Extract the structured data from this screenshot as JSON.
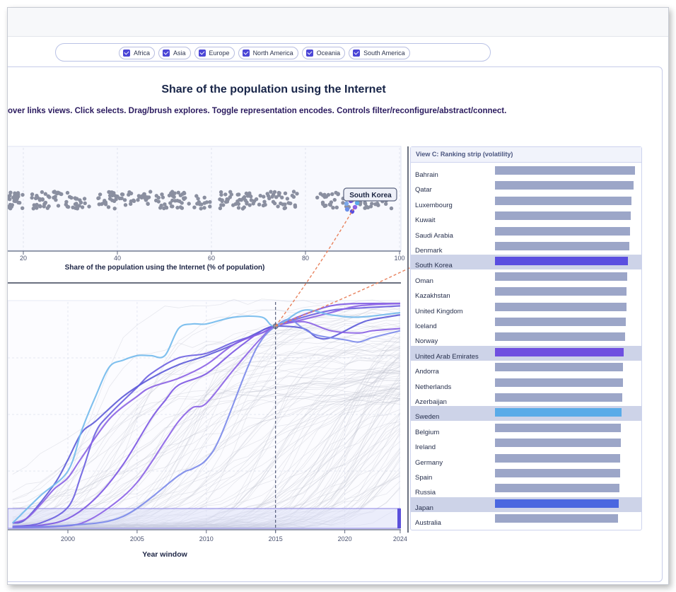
{
  "filters": [
    {
      "label": "Africa",
      "checked": true
    },
    {
      "label": "Asia",
      "checked": true
    },
    {
      "label": "Europe",
      "checked": true
    },
    {
      "label": "North America",
      "checked": true
    },
    {
      "label": "Oceania",
      "checked": true
    },
    {
      "label": "South America",
      "checked": true
    }
  ],
  "title": "Share of the population using the Internet",
  "instructions": "over links views. Click selects. Drag/brush explores. Toggle representation encodes. Controls filter/reconfigure/abstract/connect.",
  "view_c_title": "View C: Ranking strip (volatility)",
  "tooltip": "South Korea",
  "colors": {
    "accent": "#4b46d6",
    "dots": "#8a8fa0",
    "bar_default": "#9ca6c8",
    "row_highlight": "#cdd3e8",
    "link_dash": "#e8825d"
  },
  "chart_data": [
    {
      "type": "scatter",
      "subtype": "beeswarm",
      "xlabel": "Share of the population using the Internet (% of population)",
      "xlim": [
        15,
        100
      ],
      "xticks": [
        20,
        40,
        60,
        80,
        100
      ],
      "highlight": {
        "label": "South Korea",
        "x": 89.9
      }
    },
    {
      "type": "line",
      "xlabel": "Year window",
      "xlim": [
        1996,
        2024
      ],
      "xticks": [
        2000,
        2005,
        2010,
        2015,
        2020,
        2024
      ],
      "ylim": [
        0,
        100
      ],
      "marker_year": 2015,
      "highlighted_series": [
        {
          "color": "#6b5fe0",
          "values": [
            [
              1996,
              0.5
            ],
            [
              1998,
              2
            ],
            [
              2000,
              9
            ],
            [
              2001,
              24
            ],
            [
              2002,
              42
            ],
            [
              2003,
              50
            ],
            [
              2005,
              62
            ],
            [
              2006,
              68
            ],
            [
              2008,
              75
            ],
            [
              2010,
              77
            ],
            [
              2012,
              82
            ],
            [
              2014,
              86
            ],
            [
              2015,
              89
            ],
            [
              2017,
              93
            ],
            [
              2019,
              96
            ],
            [
              2021,
              97
            ],
            [
              2024,
              98
            ]
          ]
        },
        {
          "color": "#7b55e2",
          "values": [
            [
              1996,
              0.2
            ],
            [
              1998,
              1
            ],
            [
              2000,
              4
            ],
            [
              2002,
              13
            ],
            [
              2004,
              28
            ],
            [
              2006,
              48
            ],
            [
              2007,
              56
            ],
            [
              2008,
              63
            ],
            [
              2010,
              68
            ],
            [
              2012,
              78
            ],
            [
              2014,
              87
            ],
            [
              2015,
              89
            ],
            [
              2017,
              94
            ],
            [
              2019,
              98
            ],
            [
              2021,
              99
            ],
            [
              2024,
              99
            ]
          ]
        },
        {
          "color": "#8b62e6",
          "values": [
            [
              1996,
              0.1
            ],
            [
              1999,
              0.5
            ],
            [
              2001,
              2
            ],
            [
              2003,
              9
            ],
            [
              2005,
              20
            ],
            [
              2007,
              38
            ],
            [
              2008,
              47
            ],
            [
              2009,
              53
            ],
            [
              2010,
              55
            ],
            [
              2012,
              70
            ],
            [
              2014,
              84
            ],
            [
              2015,
              89
            ],
            [
              2017,
              92
            ],
            [
              2019,
              95
            ],
            [
              2021,
              98
            ],
            [
              2024,
              99
            ]
          ]
        },
        {
          "color": "#5c5ad8",
          "values": [
            [
              1996,
              2
            ],
            [
              1997,
              4
            ],
            [
              1999,
              19
            ],
            [
              2000,
              30
            ],
            [
              2001,
              42
            ],
            [
              2002,
              47
            ],
            [
              2004,
              58
            ],
            [
              2006,
              66
            ],
            [
              2008,
              72
            ],
            [
              2010,
              76
            ],
            [
              2012,
              81
            ],
            [
              2014,
              87
            ],
            [
              2015,
              89
            ],
            [
              2017,
              88
            ],
            [
              2018,
              84
            ],
            [
              2019,
              84
            ],
            [
              2021,
              90
            ],
            [
              2022,
              92
            ],
            [
              2024,
              94
            ]
          ]
        },
        {
          "color": "#8a60e4",
          "values": [
            [
              1996,
              2
            ],
            [
              1997,
              4
            ],
            [
              1998,
              10
            ],
            [
              1999,
              17
            ],
            [
              2000,
              22
            ],
            [
              2001,
              31
            ],
            [
              2003,
              48
            ],
            [
              2005,
              58
            ],
            [
              2006,
              62
            ],
            [
              2008,
              66
            ],
            [
              2010,
              72
            ],
            [
              2012,
              81
            ],
            [
              2014,
              86
            ],
            [
              2015,
              89
            ],
            [
              2017,
              91
            ],
            [
              2019,
              87
            ],
            [
              2021,
              86
            ],
            [
              2022,
              87
            ],
            [
              2024,
              88
            ]
          ]
        },
        {
          "color": "#7a88ea",
          "values": [
            [
              1996,
              0.2
            ],
            [
              2000,
              1
            ],
            [
              2004,
              5
            ],
            [
              2008,
              23
            ],
            [
              2009,
              26
            ],
            [
              2010,
              30
            ],
            [
              2011,
              40
            ],
            [
              2013,
              71
            ],
            [
              2014,
              83
            ],
            [
              2015,
              89
            ],
            [
              2016,
              92
            ],
            [
              2017,
              88
            ],
            [
              2018,
              85
            ],
            [
              2020,
              83
            ],
            [
              2021,
              82
            ],
            [
              2022,
              84
            ],
            [
              2024,
              87
            ]
          ]
        },
        {
          "color": "#71b9ec",
          "values": [
            [
              1996,
              2
            ],
            [
              1998,
              14
            ],
            [
              2000,
              25
            ],
            [
              2001,
              43
            ],
            [
              2002,
              58
            ],
            [
              2003,
              71
            ],
            [
              2004,
              74
            ],
            [
              2005,
              76
            ],
            [
              2006,
              76
            ],
            [
              2007,
              76
            ],
            [
              2008,
              88
            ],
            [
              2009,
              90
            ],
            [
              2010,
              90
            ],
            [
              2012,
              93
            ],
            [
              2014,
              93
            ],
            [
              2015,
              89
            ],
            [
              2017,
              96
            ],
            [
              2019,
              94
            ],
            [
              2021,
              93
            ],
            [
              2024,
              95
            ]
          ]
        }
      ]
    },
    {
      "type": "bar",
      "orientation": "horizontal",
      "title": "View C: Ranking strip (volatility)",
      "categories": [
        "Bahrain",
        "Qatar",
        "Luxembourg",
        "Kuwait",
        "Saudi Arabia",
        "Denmark",
        "South Korea",
        "Oman",
        "Kazakhstan",
        "United Kingdom",
        "Iceland",
        "Norway",
        "United Arab Emirates",
        "Andorra",
        "Netherlands",
        "Azerbaijan",
        "Sweden",
        "Belgium",
        "Ireland",
        "Germany",
        "Spain",
        "Russia",
        "Japan",
        "Australia"
      ],
      "values": [
        100,
        99,
        97.5,
        97,
        96.5,
        96,
        95,
        94.5,
        94,
        94,
        93.5,
        93,
        92,
        91.5,
        91.5,
        91,
        90.5,
        90,
        90,
        89.5,
        89.5,
        89,
        88.5,
        88
      ],
      "xlim": [
        0,
        100
      ],
      "highlighted": {
        "South Korea": "#5a4ee0",
        "United Arab Emirates": "#6f4fe0",
        "Sweden": "#5aabe8",
        "Japan": "#4a67e0"
      }
    }
  ]
}
